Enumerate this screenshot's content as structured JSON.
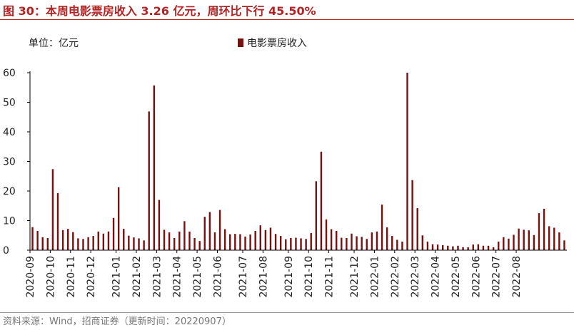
{
  "header": {
    "title": "图 30：本周电影票房收入 3.26 亿元，周环比下行 45.50%",
    "unit": "单位：亿元",
    "source": "资料来源：Wind，招商证券（更新时间：20220907）"
  },
  "colors": {
    "bar": "#7a0f0f",
    "title": "#b22222"
  },
  "chart_data": {
    "type": "bar",
    "legend": [
      "电影票房收入"
    ],
    "ylim": [
      0,
      60
    ],
    "yticks": [
      0,
      10,
      20,
      30,
      40,
      50,
      60
    ],
    "x_tick_labels": [
      "2020-09",
      "2020-10",
      "2020-11",
      "2020-12",
      "2021-01",
      "2021-02",
      "2021-03",
      "2021-04",
      "2021-05",
      "2021-06",
      "2021-07",
      "2021-08",
      "2021-09",
      "2021-10",
      "2021-11",
      "2021-12",
      "2022-01",
      "2022-02",
      "2022-03",
      "2022-04",
      "2022-05",
      "2022-06",
      "2022-07",
      "2022-08"
    ],
    "x_tick_positions": [
      0,
      4,
      8,
      12,
      17,
      21,
      25,
      29,
      33,
      37,
      42,
      46,
      51,
      55,
      59,
      64,
      68,
      72,
      76,
      80,
      84,
      88,
      92,
      96
    ],
    "series": [
      {
        "name": "电影票房收入",
        "values": [
          7.8,
          6.5,
          4.4,
          4.1,
          27.4,
          19.3,
          6.8,
          7.2,
          6.1,
          4.0,
          3.8,
          4.4,
          4.8,
          6.3,
          5.6,
          6.3,
          10.9,
          21.3,
          7.2,
          4.9,
          4.3,
          4.0,
          3.3,
          46.9,
          55.7,
          17.0,
          6.9,
          6.0,
          4.1,
          6.3,
          9.8,
          6.3,
          4.1,
          3.1,
          11.3,
          12.9,
          6.0,
          13.6,
          7.1,
          5.4,
          5.5,
          5.4,
          4.6,
          5.3,
          6.5,
          8.4,
          6.8,
          7.6,
          5.5,
          4.8,
          3.7,
          4.1,
          4.2,
          4.0,
          3.8,
          5.8,
          23.3,
          33.3,
          10.4,
          7.1,
          6.5,
          4.2,
          4.1,
          5.6,
          4.7,
          4.5,
          3.8,
          6.0,
          6.3,
          15.4,
          7.7,
          4.8,
          3.5,
          2.9,
          60.0,
          23.7,
          14.2,
          5.0,
          2.9,
          2.0,
          1.9,
          1.7,
          1.5,
          1.3,
          1.5,
          1.0,
          1.0,
          1.9,
          2.0,
          1.5,
          1.5,
          1.0,
          2.9,
          4.4,
          3.9,
          5.2,
          7.3,
          6.9,
          6.7,
          5.1,
          12.5,
          14.0,
          8.1,
          7.6,
          6.0,
          3.3
        ]
      }
    ]
  }
}
